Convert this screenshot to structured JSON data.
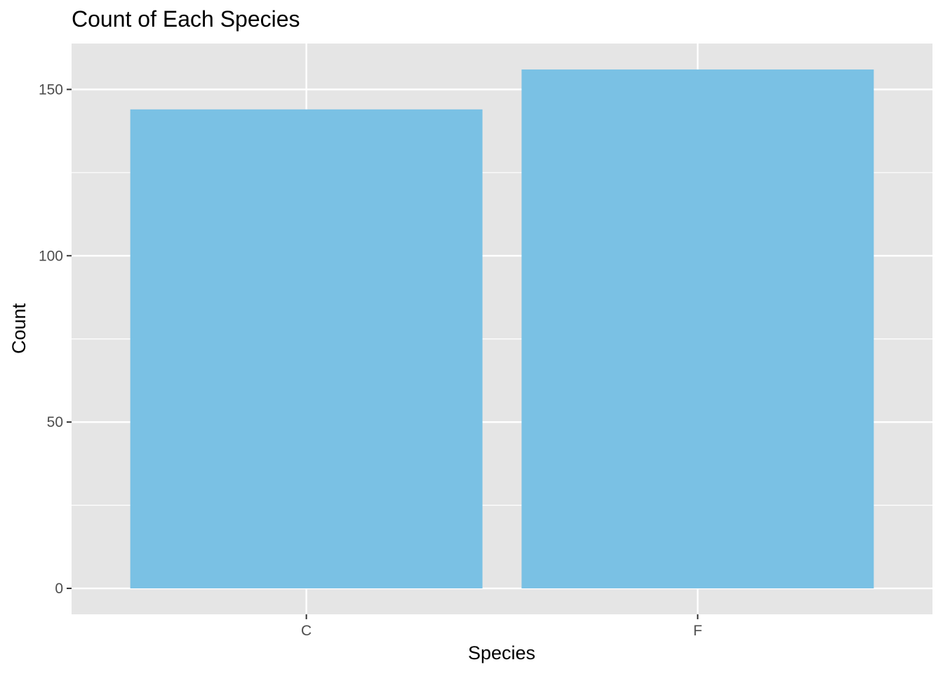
{
  "chart_data": {
    "type": "bar",
    "title": "Count of Each Species",
    "xlabel": "Species",
    "ylabel": "Count",
    "categories": [
      "C",
      "F"
    ],
    "values": [
      144,
      156
    ],
    "ylim": [
      -7.8,
      163.8
    ],
    "yticks": [
      0,
      50,
      100,
      150
    ],
    "ytick_labels": [
      "0",
      "50",
      "100",
      "150"
    ],
    "grid": true,
    "legend": "none",
    "colors": {
      "bar": "#7AC1E4",
      "panel_background": "#E5E5E5",
      "grid": "#FFFFFF",
      "tick_text": "#4D4D4D",
      "tick_mark": "#333333"
    }
  }
}
